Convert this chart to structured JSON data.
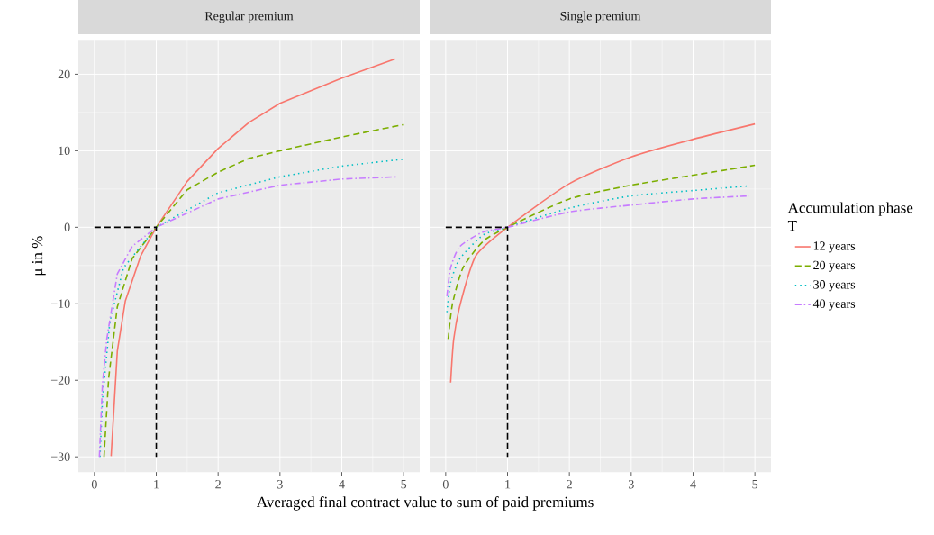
{
  "chart_data": [
    {
      "type": "line",
      "title": "Regular premium",
      "xlabel": "Averaged final contract value to sum of paid premiums",
      "ylabel": "μ in %",
      "xlim": [
        -0.26,
        5.26
      ],
      "ylim": [
        -32,
        24.5
      ],
      "xticks": [
        0,
        1,
        2,
        3,
        4,
        5
      ],
      "yticks": [
        {
          "value": -30,
          "label": "−30"
        },
        {
          "value": -20,
          "label": "−20"
        },
        {
          "value": -10,
          "label": "−10"
        },
        0,
        10,
        20
      ],
      "grid": true,
      "legend": false,
      "series": [
        {
          "color": "#F8766D",
          "line_style": "solid",
          "x": [
            0.27,
            0.37,
            0.5,
            0.75,
            1,
            1.5,
            2,
            2.5,
            3,
            4,
            4.86
          ],
          "values": [
            -29.9,
            -16.2,
            -9.6,
            -3.7,
            0,
            6,
            10.3,
            13.7,
            16.2,
            19.5,
            22.0
          ]
        },
        {
          "color": "#7CAE00",
          "line_style": "dashed",
          "x": [
            0.155,
            0.23,
            0.37,
            0.61,
            1,
            1.5,
            2,
            2.5,
            3,
            4,
            4.99
          ],
          "values": [
            -30,
            -19.7,
            -10.4,
            -4.1,
            0,
            4.9,
            7.2,
            9.0,
            10.0,
            11.8,
            13.4
          ]
        },
        {
          "color": "#00BFC4",
          "line_style": "dotted",
          "x": [
            0.09,
            0.13,
            0.25,
            0.47,
            1,
            2,
            3,
            4,
            5
          ],
          "values": [
            -30,
            -22.5,
            -12.3,
            -5.3,
            0,
            4.5,
            6.6,
            8.0,
            8.9
          ]
        },
        {
          "color": "#C77CFF",
          "line_style": "dashdot",
          "x": [
            0.08,
            0.13,
            0.2,
            0.37,
            0.61,
            1,
            2,
            3,
            4,
            4.91
          ],
          "values": [
            -30,
            -20.5,
            -14.6,
            -6.1,
            -2.5,
            0,
            3.7,
            5.5,
            6.3,
            6.6
          ]
        },
        {
          "color": "#000000",
          "line_style": "dashed",
          "x": [
            0,
            1,
            1
          ],
          "values": [
            0,
            0,
            -30
          ]
        }
      ]
    },
    {
      "type": "line",
      "title": "Single premium",
      "legend_title": "Accumulation phase T",
      "xlim": [
        -0.26,
        5.26
      ],
      "ylim": [
        -32,
        24.5
      ],
      "xticks": [
        0,
        1,
        2,
        3,
        4,
        5
      ],
      "yticks": [
        -30,
        -20,
        -10,
        0,
        10,
        20
      ],
      "tick_labels": "x",
      "grid": true,
      "legend": "right",
      "series": [
        {
          "name": "12 years",
          "color": "#F8766D",
          "line_style": "solid",
          "x": [
            0.08,
            0.13,
            0.25,
            0.49,
            1,
            2,
            3,
            4,
            5
          ],
          "values": [
            -20.3,
            -14.6,
            -9.6,
            -3.7,
            0,
            5.7,
            9.2,
            11.5,
            13.5
          ]
        },
        {
          "name": "20 years",
          "color": "#7CAE00",
          "line_style": "dashed",
          "x": [
            0.04,
            0.11,
            0.28,
            0.61,
            1,
            2,
            3,
            4,
            5
          ],
          "values": [
            -14.6,
            -10,
            -5.3,
            -1.8,
            0,
            3.7,
            5.5,
            6.8,
            8.1
          ]
        },
        {
          "name": "30 years",
          "color": "#00BFC4",
          "line_style": "dotted",
          "x": [
            0.02,
            0.08,
            0.23,
            0.61,
            1,
            2,
            3,
            4,
            4.9
          ],
          "values": [
            -11.1,
            -7.2,
            -4.1,
            -1.0,
            0,
            2.5,
            4.1,
            4.8,
            5.4
          ]
        },
        {
          "name": "40 years",
          "color": "#C77CFF",
          "line_style": "dashdot",
          "x": [
            0.02,
            0.08,
            0.23,
            0.61,
            1,
            2,
            3,
            4,
            4.91
          ],
          "values": [
            -9.0,
            -5.3,
            -2.5,
            -0.6,
            0,
            2.0,
            2.9,
            3.7,
            4.1
          ]
        },
        {
          "color": "#000000",
          "line_style": "dashed",
          "x": [
            0,
            1,
            1
          ],
          "values": [
            0,
            0,
            -30
          ]
        }
      ]
    }
  ]
}
